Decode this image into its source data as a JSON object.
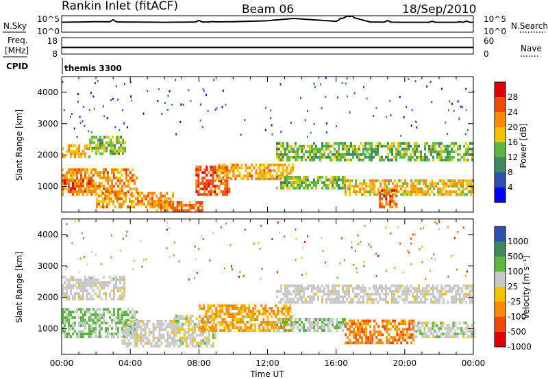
{
  "header": {
    "station": "Rankin Inlet (fitACF)",
    "beam": "Beam 06",
    "date": "18/Sep/2010"
  },
  "params": {
    "nsky_label": "N.Sky",
    "nsearch_label": "N.Search",
    "freq_label_1": "Freq.",
    "freq_label_2": "[MHz]",
    "nave_label": "Nave",
    "cpid_label": "CPID",
    "cpid_value": "themis 3300",
    "nsky_ticks": [
      "10^5",
      "10^0"
    ],
    "nsearch_ticks": [
      "10^5",
      "10^0"
    ],
    "freq_ticks": [
      "18",
      "8"
    ],
    "nave_ticks": [
      "60",
      "0"
    ]
  },
  "colors": {
    "power": [
      "#0000ff",
      "#2e4fb0",
      "#3c8a5a",
      "#5ab840",
      "#f2c400",
      "#ff8a00",
      "#f04a00",
      "#e00000"
    ],
    "velocity": [
      "#e00000",
      "#f04a00",
      "#ff8a00",
      "#f2c400",
      "#c8c8c8",
      "#5ab840",
      "#3c8a5a",
      "#2e4fb0"
    ],
    "ground_scatter": "#c8c8c8"
  },
  "chart_data": [
    {
      "type": "line",
      "title": "N.Sky / N.Search",
      "yscale": "log",
      "ylim": [
        1,
        100000
      ],
      "x": [
        "00:00",
        "02:00",
        "04:00",
        "06:00",
        "08:00",
        "10:00",
        "12:00",
        "13:30",
        "16:00",
        "16:40",
        "18:00",
        "20:00",
        "22:00",
        "24:00"
      ],
      "series": [
        {
          "name": "N.Sky",
          "values": [
            1000,
            1500,
            1200,
            1000,
            1200,
            1500,
            3000,
            15000,
            2000,
            80000,
            1200,
            1000,
            1000,
            1000
          ]
        }
      ]
    },
    {
      "type": "line",
      "title": "Freq. / Nave",
      "ylim": [
        8,
        18
      ],
      "x": [
        "00:00",
        "24:00"
      ],
      "series": [
        {
          "name": "Freq.",
          "values": [
            12,
            12
          ]
        }
      ]
    },
    {
      "type": "heatmap",
      "title": "Power [dB]",
      "xlabel": "",
      "ylabel": "Slant Range [km]",
      "xlim": [
        0,
        24
      ],
      "ylim": [
        180,
        4500
      ],
      "x_ticks": [
        "00:00",
        "04:00",
        "08:00",
        "12:00",
        "16:00",
        "20:00",
        "00:00"
      ],
      "y_ticks": [
        "1000",
        "2000",
        "3000",
        "4000"
      ],
      "colorbar": {
        "label": "Power [dB]",
        "ticks": [
          "4",
          "8",
          "12",
          "16",
          "20",
          "24",
          "28"
        ],
        "range": [
          0,
          30
        ]
      },
      "bands": [
        {
          "t0": 0.0,
          "t1": 1.6,
          "r0": 1900,
          "r1": 2300,
          "value": 18
        },
        {
          "t0": 1.6,
          "t1": 3.7,
          "r0": 2000,
          "r1": 2600,
          "value": 14
        },
        {
          "t0": 0.0,
          "t1": 1.9,
          "r0": 800,
          "r1": 1150,
          "value": 28
        },
        {
          "t0": 0.0,
          "t1": 4.4,
          "r0": 700,
          "r1": 1500,
          "value": 20
        },
        {
          "t0": 2.0,
          "t1": 6.5,
          "r0": 300,
          "r1": 800,
          "value": 20
        },
        {
          "t0": 5.5,
          "t1": 8.2,
          "r0": 180,
          "r1": 500,
          "value": 22
        },
        {
          "t0": 7.8,
          "t1": 9.8,
          "r0": 700,
          "r1": 1600,
          "value": 24
        },
        {
          "t0": 9.0,
          "t1": 13.5,
          "r0": 1200,
          "r1": 1700,
          "value": 19
        },
        {
          "t0": 12.5,
          "t1": 16.5,
          "r0": 900,
          "r1": 1300,
          "value": 14
        },
        {
          "t0": 12.5,
          "t1": 24.0,
          "r0": 1800,
          "r1": 2400,
          "value": 13
        },
        {
          "t0": 16.5,
          "t1": 24.0,
          "r0": 700,
          "r1": 1200,
          "value": 18
        },
        {
          "t0": 18.5,
          "t1": 19.5,
          "r0": 300,
          "r1": 900,
          "value": 24
        }
      ]
    },
    {
      "type": "heatmap",
      "title": "Velocity [m s^-1]",
      "xlabel": "Time UT",
      "ylabel": "Slant Range [km]",
      "xlim": [
        0,
        24
      ],
      "ylim": [
        180,
        4500
      ],
      "x_ticks": [
        "00:00",
        "04:00",
        "08:00",
        "12:00",
        "16:00",
        "20:00",
        "00:00"
      ],
      "y_ticks": [
        "1000",
        "2000",
        "3000",
        "4000"
      ],
      "colorbar": {
        "label": "Velocity [m s⁻¹]",
        "ticks": [
          "1000",
          "500",
          "100",
          "25",
          "-25",
          "-100",
          "-500",
          "-1000"
        ],
        "range": [
          -1000,
          1000
        ]
      },
      "bands": [
        {
          "t0": 0.0,
          "t1": 3.7,
          "r0": 1900,
          "r1": 2600,
          "value": 0
        },
        {
          "t0": 0.0,
          "t1": 4.4,
          "r0": 700,
          "r1": 1600,
          "value": 300
        },
        {
          "t0": 3.5,
          "t1": 6.5,
          "r0": 400,
          "r1": 1200,
          "value": 0
        },
        {
          "t0": 6.5,
          "t1": 9.0,
          "r0": 400,
          "r1": 1400,
          "value": 80
        },
        {
          "t0": 8.0,
          "t1": 13.5,
          "r0": 900,
          "r1": 1700,
          "value": -300
        },
        {
          "t0": 12.5,
          "t1": 16.5,
          "r0": 900,
          "r1": 1300,
          "value": 200
        },
        {
          "t0": 12.5,
          "t1": 24.0,
          "r0": 1800,
          "r1": 2400,
          "value": 0
        },
        {
          "t0": 16.5,
          "t1": 20.5,
          "r0": 500,
          "r1": 1200,
          "value": -400
        },
        {
          "t0": 20.5,
          "t1": 24.0,
          "r0": 700,
          "r1": 1200,
          "value": 150
        }
      ]
    }
  ]
}
